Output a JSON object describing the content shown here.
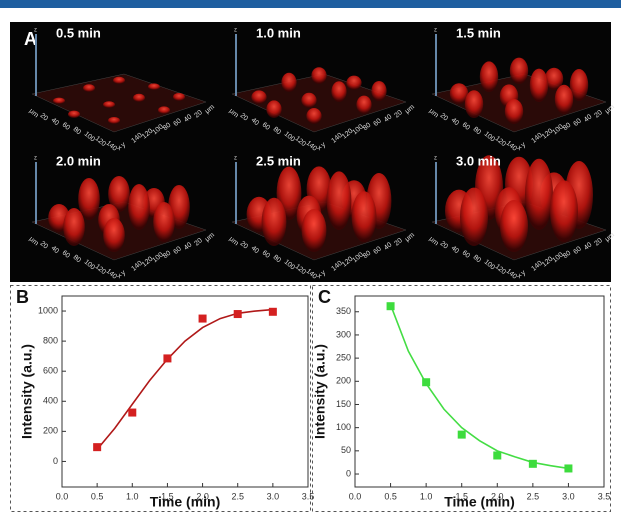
{
  "panel_a": {
    "label": "A",
    "tiles": [
      "0.5 min",
      "1.0 min",
      "1.5 min",
      "2.0 min",
      "2.5 min",
      "3.0 min"
    ],
    "x_axis_labels": [
      "μm",
      "20",
      "40",
      "60",
      "80",
      "100",
      "120",
      "140",
      "x"
    ],
    "y_axis_labels": [
      "y",
      "140",
      "120",
      "100",
      "80",
      "60",
      "40",
      "20",
      "μm"
    ],
    "z_axis_label": "z"
  },
  "chart_data": [
    {
      "type": "scatter",
      "panel_label": "B",
      "x_label": "Time (min)",
      "y_label": "Intensity (a.u.)",
      "xlim": [
        0,
        3.5
      ],
      "ylim": [
        -170,
        1100
      ],
      "xticks": [
        {
          "value": 0,
          "label": "0.0"
        },
        0.5,
        {
          "value": 1,
          "label": "1.0"
        },
        1.5,
        {
          "value": 2,
          "label": "2.0"
        },
        2.5,
        {
          "value": 3,
          "label": "3.0"
        },
        3.5
      ],
      "yticks": [
        0,
        200,
        400,
        600,
        800,
        1000
      ],
      "series": [
        {
          "color": "#d42020",
          "mode": "markers",
          "x": [
            0.5,
            1.0,
            1.5,
            2.0,
            2.5,
            3.0
          ],
          "values": [
            95,
            325,
            685,
            950,
            980,
            995
          ]
        },
        {
          "color": "#b01818",
          "mode": "line",
          "x": [
            0.5,
            0.75,
            1.0,
            1.25,
            1.5,
            1.75,
            2.0,
            2.25,
            2.5,
            2.75,
            3.0
          ],
          "values": [
            80,
            220,
            380,
            540,
            680,
            800,
            890,
            950,
            985,
            1000,
            1010
          ]
        }
      ]
    },
    {
      "type": "scatter",
      "panel_label": "C",
      "x_label": "Time (min)",
      "y_label": "Intensity (a.u.)",
      "xlim": [
        0,
        3.5
      ],
      "ylim": [
        -28,
        384
      ],
      "xticks": [
        {
          "value": 0,
          "label": "0.0"
        },
        0.5,
        {
          "value": 1,
          "label": "1.0"
        },
        1.5,
        {
          "value": 2,
          "label": "2.0"
        },
        2.5,
        {
          "value": 3,
          "label": "3.0"
        },
        3.5
      ],
      "yticks": [
        0,
        50,
        100,
        150,
        200,
        250,
        300,
        350
      ],
      "series": [
        {
          "color": "#3ddc3d",
          "mode": "markers",
          "x": [
            0.5,
            1.0,
            1.5,
            2.0,
            2.5,
            3.0
          ],
          "values": [
            362,
            198,
            85,
            40,
            22,
            12
          ]
        },
        {
          "color": "#44dd44",
          "mode": "line",
          "x": [
            0.5,
            0.75,
            1.0,
            1.25,
            1.5,
            1.75,
            2.0,
            2.25,
            2.5,
            2.75,
            3.0
          ],
          "values": [
            365,
            265,
            195,
            140,
            100,
            72,
            50,
            37,
            25,
            18,
            12
          ]
        }
      ]
    }
  ]
}
